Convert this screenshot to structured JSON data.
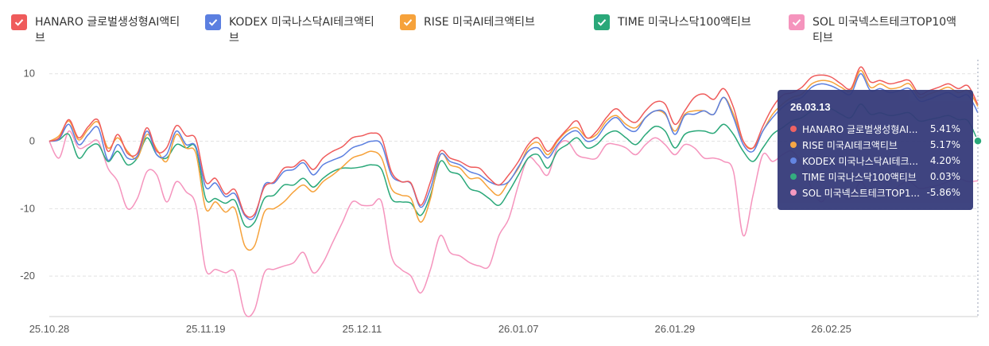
{
  "legend": [
    {
      "label": "HANARO 글로벌생성형AI액티브",
      "color": "#ef5b5b"
    },
    {
      "label": "KODEX 미국나스닥AI테크액티브",
      "color": "#5b7fe0"
    },
    {
      "label": "RISE 미국AI테크액티브",
      "color": "#f6a23b"
    },
    {
      "label": "TIME 미국나스닥100액티브",
      "color": "#2aa879"
    },
    {
      "label": "SOL 미국넥스트테크TOP10액티브",
      "color": "#f594bd"
    }
  ],
  "chart_data": {
    "type": "line",
    "x_ticks": [
      "25.10.28",
      "25.11.19",
      "25.12.11",
      "26.01.07",
      "26.01.29",
      "26.02.25"
    ],
    "x_tick_index": [
      0,
      16,
      32,
      48,
      64,
      80
    ],
    "y_ticks": [
      10,
      0,
      -10,
      -20
    ],
    "ylim": [
      -26,
      11.5
    ],
    "grid": true,
    "x": [
      "25.10.28",
      "25.10.29",
      "25.10.30",
      "25.10.31",
      "25.11.03",
      "25.11.04",
      "25.11.05",
      "25.11.06",
      "25.11.07",
      "25.11.10",
      "25.11.11",
      "25.11.12",
      "25.11.13",
      "25.11.14",
      "25.11.17",
      "25.11.18",
      "25.11.19",
      "25.11.20",
      "25.11.21",
      "25.11.24",
      "25.11.25",
      "25.11.26",
      "25.11.27",
      "25.11.28",
      "25.12.01",
      "25.12.02",
      "25.12.03",
      "25.12.04",
      "25.12.05",
      "25.12.08",
      "25.12.09",
      "25.12.10",
      "25.12.11",
      "25.12.12",
      "25.12.15",
      "25.12.16",
      "25.12.17",
      "25.12.18",
      "25.12.19",
      "25.12.22",
      "25.12.23",
      "25.12.24",
      "25.12.26",
      "25.12.29",
      "25.12.30",
      "26.01.02",
      "26.01.05",
      "26.01.06",
      "26.01.07",
      "26.01.08",
      "26.01.09",
      "26.01.12",
      "26.01.13",
      "26.01.14",
      "26.01.15",
      "26.01.16",
      "26.01.19",
      "26.01.20",
      "26.01.21",
      "26.01.22",
      "26.01.23",
      "26.01.26",
      "26.01.27",
      "26.01.28",
      "26.01.29",
      "26.01.30",
      "26.02.02",
      "26.02.03",
      "26.02.04",
      "26.02.05",
      "26.02.06",
      "26.02.09",
      "26.02.10",
      "26.02.11",
      "26.02.12",
      "26.02.13",
      "26.02.16",
      "26.02.17",
      "26.02.18",
      "26.02.19",
      "26.02.20",
      "26.02.23",
      "26.02.24",
      "26.02.25",
      "26.02.26",
      "26.02.27",
      "26.03.02",
      "26.03.03",
      "26.03.04",
      "26.03.05",
      "26.03.06",
      "26.03.09",
      "26.03.10",
      "26.03.11",
      "26.03.12",
      "26.03.13"
    ],
    "series": [
      {
        "name": "HANARO 글로벌생성형AI액티브",
        "color": "#ef5b5b",
        "values": [
          0,
          0.5,
          3.2,
          0.5,
          2.2,
          3.1,
          -1.5,
          1.0,
          -1.8,
          -1.8,
          2.0,
          -1.5,
          -1.0,
          2.3,
          0.8,
          0.3,
          -6.0,
          -5.5,
          -7.8,
          -7.2,
          -10.8,
          -10.8,
          -6.8,
          -6.0,
          -4.0,
          -3.8,
          -2.8,
          -4.2,
          -2.5,
          -1.5,
          -0.8,
          0.5,
          0.8,
          1.2,
          0.5,
          -4.5,
          -6.0,
          -6.2,
          -9.5,
          -6.0,
          -1.5,
          -2.5,
          -3.0,
          -3.8,
          -4.0,
          -5.5,
          -6.5,
          -5.0,
          -3.0,
          -0.5,
          0.5,
          -1.5,
          0.2,
          1.8,
          3.0,
          0.5,
          1.5,
          3.5,
          4.8,
          3.5,
          2.8,
          4.5,
          5.8,
          5.5,
          2.5,
          4.5,
          6.5,
          7.0,
          6.2,
          7.8,
          5.0,
          0.0,
          -1.0,
          2.2,
          5.0,
          6.8,
          7.2,
          8.0,
          9.5,
          9.8,
          9.5,
          8.5,
          7.8,
          11.0,
          8.8,
          9.0,
          8.5,
          8.8,
          9.0,
          7.0,
          7.5,
          8.0,
          8.5,
          7.8,
          8.2,
          5.41
        ]
      },
      {
        "name": "KODEX 미국나스닥AI테크액티브",
        "color": "#5b7fe0",
        "values": [
          0,
          0.3,
          2.5,
          -0.5,
          1.0,
          2.0,
          -2.8,
          -0.5,
          -2.5,
          -2.2,
          1.5,
          -2.0,
          -2.0,
          1.5,
          -0.5,
          -0.8,
          -6.8,
          -6.2,
          -8.2,
          -7.8,
          -11.0,
          -11.2,
          -6.5,
          -6.2,
          -4.5,
          -4.2,
          -3.2,
          -5.0,
          -3.5,
          -2.8,
          -2.2,
          -1.0,
          -0.5,
          0.0,
          -0.5,
          -5.0,
          -6.0,
          -6.3,
          -9.8,
          -7.0,
          -2.0,
          -3.0,
          -3.5,
          -4.5,
          -5.0,
          -6.0,
          -6.5,
          -6.0,
          -3.8,
          -1.5,
          -1.0,
          -2.5,
          -0.5,
          1.0,
          1.5,
          0.0,
          0.5,
          2.5,
          3.5,
          2.0,
          1.5,
          3.5,
          4.5,
          4.2,
          1.0,
          3.8,
          4.0,
          4.5,
          4.0,
          6.5,
          3.5,
          -0.5,
          -1.5,
          1.5,
          3.5,
          5.0,
          6.0,
          6.5,
          8.0,
          8.5,
          8.2,
          7.5,
          7.0,
          10.0,
          7.5,
          7.8,
          7.2,
          7.5,
          7.8,
          6.0,
          6.2,
          6.8,
          7.2,
          6.5,
          6.8,
          4.2
        ]
      },
      {
        "name": "RISE 미국AI테크액티브",
        "color": "#f6a23b",
        "values": [
          0,
          0.8,
          3.0,
          0.2,
          1.8,
          2.8,
          -1.0,
          0.5,
          -1.5,
          -2.5,
          1.0,
          -1.2,
          -3.0,
          1.0,
          -1.0,
          -1.8,
          -10.0,
          -9.0,
          -10.5,
          -10.0,
          -15.5,
          -15.5,
          -10.5,
          -10.0,
          -9.0,
          -7.5,
          -6.5,
          -7.5,
          -6.0,
          -5.0,
          -3.8,
          -2.5,
          -2.0,
          -1.5,
          -2.5,
          -7.0,
          -8.0,
          -8.5,
          -12.0,
          -8.5,
          -2.0,
          -3.5,
          -4.0,
          -5.5,
          -5.5,
          -7.0,
          -8.0,
          -6.0,
          -4.0,
          -1.0,
          -0.2,
          -2.0,
          0.0,
          1.5,
          2.0,
          0.5,
          1.0,
          3.0,
          3.8,
          2.5,
          2.0,
          3.5,
          4.5,
          4.0,
          1.5,
          4.0,
          4.5,
          4.5,
          4.0,
          6.5,
          4.0,
          0.0,
          -1.0,
          1.5,
          4.0,
          5.5,
          6.5,
          7.0,
          8.5,
          9.0,
          8.8,
          8.0,
          7.5,
          10.5,
          8.0,
          8.5,
          7.8,
          8.0,
          8.5,
          6.5,
          7.0,
          7.5,
          8.0,
          7.2,
          7.5,
          5.17
        ]
      },
      {
        "name": "TIME 미국나스닥100액티브",
        "color": "#2aa879",
        "values": [
          0,
          0.2,
          1.0,
          -2.5,
          -1.0,
          -0.5,
          -3.0,
          -1.5,
          -3.5,
          -2.5,
          0.5,
          -2.0,
          -2.5,
          -0.5,
          -1.0,
          -1.0,
          -8.5,
          -8.5,
          -9.2,
          -8.8,
          -12.5,
          -12.0,
          -8.5,
          -8.0,
          -6.5,
          -6.5,
          -5.5,
          -6.8,
          -5.5,
          -4.5,
          -4.0,
          -4.0,
          -3.8,
          -3.5,
          -4.2,
          -8.5,
          -9.0,
          -9.2,
          -11.0,
          -8.0,
          -3.0,
          -4.5,
          -5.0,
          -7.0,
          -7.5,
          -8.5,
          -9.5,
          -7.5,
          -5.0,
          -2.5,
          -2.0,
          -4.0,
          -1.5,
          -0.5,
          0.5,
          -1.0,
          -0.5,
          1.0,
          1.5,
          0.5,
          -0.5,
          1.0,
          2.2,
          1.5,
          -1.0,
          1.0,
          1.5,
          1.5,
          1.2,
          2.5,
          1.0,
          -1.5,
          -3.0,
          -1.0,
          1.0,
          2.0,
          3.0,
          3.5,
          4.5,
          5.0,
          4.8,
          4.0,
          3.5,
          5.5,
          4.0,
          4.2,
          3.8,
          4.0,
          4.2,
          3.0,
          3.2,
          3.5,
          3.8,
          3.2,
          3.0,
          0.03
        ]
      },
      {
        "name": "SOL 미국넥스트테크TOP10액티브",
        "color": "#f594bd",
        "values": [
          0,
          -2.5,
          1.5,
          -1.0,
          -0.5,
          0.0,
          -4.0,
          -6.0,
          -10.0,
          -8.5,
          -4.5,
          -5.0,
          -9.0,
          -6.0,
          -7.5,
          -9.5,
          -19.0,
          -19.0,
          -19.5,
          -19.5,
          -25.5,
          -25.0,
          -19.5,
          -19.0,
          -18.5,
          -18.0,
          -16.5,
          -19.5,
          -18.0,
          -15.0,
          -12.0,
          -9.0,
          -9.5,
          -9.5,
          -9.0,
          -17.0,
          -19.0,
          -20.0,
          -22.5,
          -19.0,
          -14.0,
          -16.5,
          -17.0,
          -18.0,
          -18.5,
          -18.5,
          -14.0,
          -11.5,
          -6.5,
          -2.5,
          -3.5,
          -5.0,
          -0.8,
          0.0,
          -2.0,
          -2.5,
          -2.5,
          -0.5,
          -0.5,
          -1.0,
          -2.0,
          -0.5,
          0.5,
          -0.5,
          -2.0,
          -0.5,
          -1.0,
          -2.5,
          -2.5,
          -3.0,
          -4.5,
          -14.0,
          -8.0,
          -2.0,
          -3.0,
          -2.0,
          -1.5,
          -3.5,
          -7.0,
          -9.0,
          -7.0,
          -8.0,
          -8.5,
          -6.0,
          -8.0,
          -7.5,
          -8.0,
          -6.5,
          -6.0,
          -7.0,
          -6.8,
          -6.5,
          -6.0,
          -5.5,
          -6.0,
          -5.86
        ]
      }
    ]
  },
  "tooltip": {
    "date": "26.03.13",
    "rows": [
      {
        "name": "HANARO 글로벌생성형AI...",
        "value": "5.41%",
        "color": "#ef5b5b"
      },
      {
        "name": "RISE 미국AI테크액티브",
        "value": "5.17%",
        "color": "#f6a23b"
      },
      {
        "name": "KODEX 미국나스닥AI테크...",
        "value": "4.20%",
        "color": "#5b7fe0"
      },
      {
        "name": "TIME 미국나스닥100액티브",
        "value": "0.03%",
        "color": "#2aa879"
      },
      {
        "name": "SOL 미국넥스트테크TOP1...",
        "value": "-5.86%",
        "color": "#f594bd"
      }
    ]
  }
}
